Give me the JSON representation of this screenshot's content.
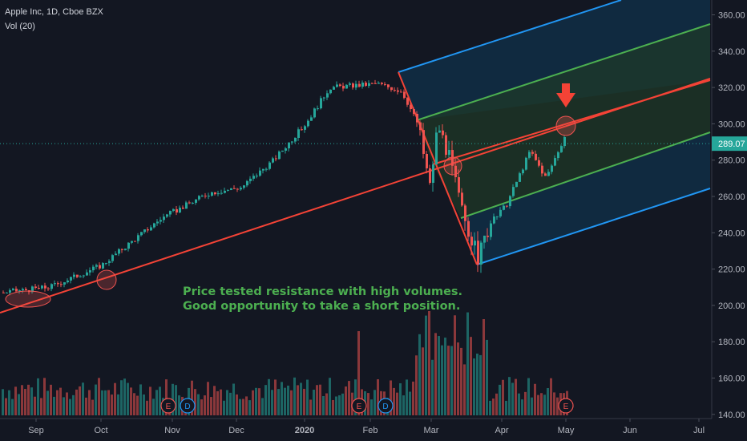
{
  "legend": {
    "symbol_line": "Apple Inc, 1D, Cboe BZX",
    "volume_line": "Vol (20)"
  },
  "chart_data": {
    "type": "candlestick",
    "y_axis": {
      "ticks": [
        140,
        160,
        180,
        200,
        220,
        240,
        260,
        280,
        300,
        320,
        340,
        360
      ],
      "tick_labels": [
        "140.00",
        "160.00",
        "180.00",
        "200.00",
        "220.00",
        "240.00",
        "260.00",
        "280.00",
        "300.00",
        "320.00",
        "340.00",
        "360.00"
      ],
      "range": [
        138,
        369
      ]
    },
    "x_axis": {
      "labels": [
        "Sep",
        "Oct",
        "Nov",
        "Dec",
        "2020",
        "Feb",
        "Mar",
        "Apr",
        "May",
        "Jun",
        "Jul"
      ],
      "bold_labels": [
        "2020"
      ]
    },
    "last_price": 289.07,
    "last_price_label": "289.07",
    "notes": [
      "Price tested resistance with high volumes.",
      "Good opportunity to take a short position."
    ],
    "events": [
      {
        "label": "E",
        "kind": "earnings"
      },
      {
        "label": "D",
        "kind": "dividend"
      },
      {
        "label": "E",
        "kind": "earnings"
      },
      {
        "label": "D",
        "kind": "dividend"
      },
      {
        "label": "E",
        "kind": "earnings"
      }
    ],
    "colors": {
      "background": "#131722",
      "up": "#26a69a",
      "down": "#ef5350",
      "trendline": "#f44336",
      "channel_outer": "#2196f3",
      "channel_mid": "#4caf50",
      "channel_center": "#f44336",
      "note_text": "#4caf50",
      "price_line": "#26a69a"
    }
  }
}
